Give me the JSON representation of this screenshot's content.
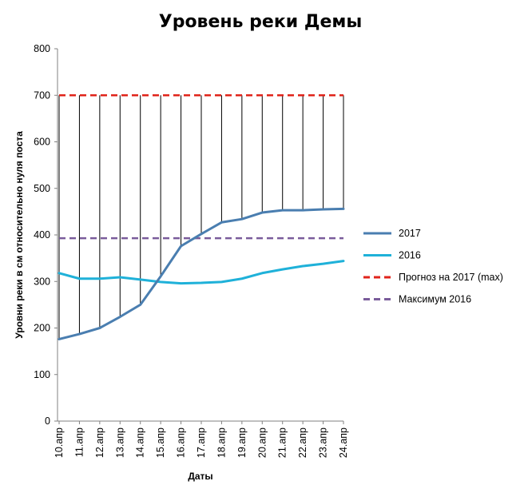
{
  "chart_data": {
    "type": "line",
    "title": "Уровень реки Демы",
    "xlabel": "Даты",
    "ylabel": "Уровни реки в см относительно нуля поста",
    "categories": [
      "10.апр",
      "11.апр",
      "12.апр",
      "13.апр",
      "14.апр",
      "15.апр",
      "16.апр",
      "17.апр",
      "18.апр",
      "19.апр",
      "20.апр",
      "21.апр",
      "22.апр",
      "23.апр",
      "24.апр"
    ],
    "ylim": [
      0,
      800
    ],
    "yticks": [
      "0",
      "100",
      "200",
      "300",
      "400",
      "500",
      "600",
      "700",
      "800"
    ],
    "grid": "vertical drop lines from 700 to 2017 series",
    "legend_position": "right",
    "series": [
      {
        "name": "2017",
        "color": "#4a7eb0",
        "style": "solid",
        "values": [
          176,
          187,
          200,
          224,
          250,
          311,
          376,
          402,
          427,
          434,
          448,
          453,
          453,
          455,
          456
        ]
      },
      {
        "name": "2016",
        "color": "#1fb1d9",
        "style": "solid",
        "values": [
          318,
          306,
          306,
          309,
          304,
          299,
          296,
          297,
          299,
          306,
          318,
          326,
          333,
          338,
          344
        ]
      },
      {
        "name": "Прогноз на 2017 (max)",
        "color": "#e0241b",
        "style": "dashed",
        "values": [
          700,
          700,
          700,
          700,
          700,
          700,
          700,
          700,
          700,
          700,
          700,
          700,
          700,
          700,
          700
        ]
      },
      {
        "name": "Максимум  2016",
        "color": "#7a5c9b",
        "style": "dashed",
        "values": [
          393,
          393,
          393,
          393,
          393,
          393,
          393,
          393,
          393,
          393,
          393,
          393,
          393,
          393,
          393
        ]
      }
    ]
  }
}
